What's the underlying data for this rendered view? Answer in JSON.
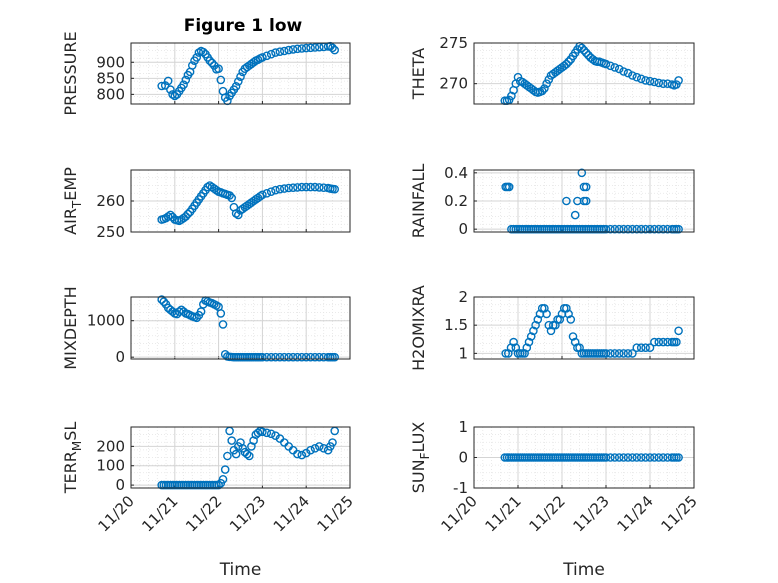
{
  "figure": {
    "title": "Figure 1 low",
    "marker_color": "#0072BD"
  },
  "chart_data": [
    {
      "type": "scatter",
      "ylabel": "PRESSURE",
      "xlabel": "",
      "xlim": [
        0,
        5
      ],
      "ylim": [
        770,
        960
      ],
      "yticks": [
        800,
        850,
        900
      ],
      "yticklabels": [
        "800",
        "850",
        "900"
      ],
      "xticks": [
        0,
        1,
        2,
        3,
        4,
        5
      ],
      "xticklabels": [],
      "x": [
        0.7,
        0.78,
        0.85,
        0.9,
        0.95,
        1.0,
        1.05,
        1.1,
        1.15,
        1.2,
        1.25,
        1.3,
        1.35,
        1.4,
        1.45,
        1.5,
        1.55,
        1.6,
        1.65,
        1.7,
        1.75,
        1.8,
        1.85,
        1.9,
        1.95,
        2.0,
        2.05,
        2.1,
        2.15,
        2.2,
        2.25,
        2.3,
        2.35,
        2.4,
        2.45,
        2.5,
        2.55,
        2.6,
        2.65,
        2.7,
        2.75,
        2.8,
        2.85,
        2.9,
        2.95,
        3.0,
        3.1,
        3.2,
        3.3,
        3.4,
        3.5,
        3.6,
        3.7,
        3.8,
        3.9,
        4.0,
        4.1,
        4.2,
        4.3,
        4.4,
        4.5,
        4.55,
        4.6,
        4.65
      ],
      "y": [
        826,
        828,
        842,
        815,
        800,
        795,
        800,
        810,
        820,
        830,
        845,
        860,
        870,
        890,
        905,
        915,
        930,
        935,
        932,
        925,
        915,
        905,
        898,
        890,
        878,
        880,
        845,
        810,
        790,
        780,
        795,
        805,
        815,
        825,
        840,
        855,
        870,
        880,
        885,
        890,
        895,
        900,
        905,
        908,
        912,
        915,
        920,
        925,
        930,
        933,
        935,
        938,
        940,
        942,
        943,
        944,
        945,
        946,
        947,
        948,
        949,
        950,
        945,
        938
      ]
    },
    {
      "type": "scatter",
      "ylabel": "THETA",
      "xlabel": "",
      "xlim": [
        0,
        5
      ],
      "ylim": [
        267.5,
        275
      ],
      "yticks": [
        270,
        275
      ],
      "yticklabels": [
        "270",
        "275"
      ],
      "xticks": [
        0,
        1,
        2,
        3,
        4,
        5
      ],
      "xticklabels": [],
      "x": [
        0.7,
        0.75,
        0.8,
        0.85,
        0.9,
        0.95,
        1.0,
        1.05,
        1.1,
        1.15,
        1.2,
        1.25,
        1.3,
        1.35,
        1.4,
        1.45,
        1.5,
        1.55,
        1.6,
        1.65,
        1.7,
        1.75,
        1.8,
        1.85,
        1.9,
        1.95,
        2.0,
        2.05,
        2.1,
        2.15,
        2.2,
        2.25,
        2.3,
        2.35,
        2.4,
        2.45,
        2.5,
        2.55,
        2.6,
        2.65,
        2.7,
        2.75,
        2.8,
        2.85,
        2.9,
        2.95,
        3.0,
        3.1,
        3.2,
        3.3,
        3.4,
        3.5,
        3.6,
        3.7,
        3.8,
        3.9,
        4.0,
        4.1,
        4.2,
        4.3,
        4.4,
        4.5,
        4.55,
        4.6,
        4.65
      ],
      "y": [
        267.9,
        267.9,
        268.0,
        268.5,
        269.2,
        270.0,
        270.8,
        270.3,
        270.2,
        270.0,
        269.8,
        269.6,
        269.4,
        269.2,
        269.0,
        268.9,
        269.0,
        269.1,
        269.4,
        270.0,
        270.5,
        271.0,
        271.2,
        271.4,
        271.6,
        271.8,
        272.0,
        272.2,
        272.4,
        272.7,
        273.0,
        273.4,
        273.8,
        274.2,
        274.6,
        274.4,
        274.1,
        273.8,
        273.5,
        273.2,
        273.0,
        272.8,
        272.7,
        272.7,
        272.6,
        272.5,
        272.4,
        272.2,
        272.0,
        271.8,
        271.5,
        271.3,
        271.0,
        270.8,
        270.6,
        270.4,
        270.3,
        270.2,
        270.1,
        270.0,
        270.0,
        269.9,
        269.8,
        269.9,
        270.4
      ]
    },
    {
      "type": "scatter",
      "ylabel": "AIR_TEMP",
      "xlabel": "",
      "xlim": [
        0,
        5
      ],
      "ylim": [
        250,
        270
      ],
      "yticks": [
        250,
        260
      ],
      "yticklabels": [
        "250",
        "260"
      ],
      "xticks": [
        0,
        1,
        2,
        3,
        4,
        5
      ],
      "xticklabels": [],
      "x": [
        0.7,
        0.75,
        0.8,
        0.85,
        0.9,
        0.95,
        1.0,
        1.05,
        1.1,
        1.15,
        1.2,
        1.25,
        1.3,
        1.35,
        1.4,
        1.45,
        1.5,
        1.55,
        1.6,
        1.65,
        1.7,
        1.75,
        1.8,
        1.85,
        1.9,
        1.95,
        2.0,
        2.05,
        2.1,
        2.15,
        2.2,
        2.25,
        2.3,
        2.35,
        2.4,
        2.45,
        2.5,
        2.55,
        2.6,
        2.65,
        2.7,
        2.75,
        2.8,
        2.85,
        2.9,
        2.95,
        3.0,
        3.1,
        3.2,
        3.3,
        3.4,
        3.5,
        3.6,
        3.7,
        3.8,
        3.9,
        4.0,
        4.1,
        4.2,
        4.3,
        4.4,
        4.5,
        4.55,
        4.6,
        4.65
      ],
      "y": [
        254.0,
        254.2,
        254.5,
        255.0,
        255.5,
        254.8,
        254.0,
        253.8,
        253.6,
        254.0,
        254.5,
        255.0,
        255.8,
        256.5,
        257.5,
        258.5,
        259.5,
        260.5,
        261.5,
        262.5,
        263.5,
        264.5,
        265.0,
        264.5,
        264.0,
        263.5,
        263.0,
        262.8,
        262.5,
        262.3,
        262.0,
        261.8,
        261.0,
        258.0,
        256.0,
        255.5,
        257.0,
        257.5,
        258.0,
        258.5,
        259.0,
        259.5,
        260.0,
        260.5,
        261.0,
        261.5,
        262.0,
        262.5,
        263.0,
        263.5,
        263.8,
        264.0,
        264.2,
        264.3,
        264.4,
        264.5,
        264.5,
        264.5,
        264.5,
        264.4,
        264.3,
        264.2,
        264.0,
        263.9,
        263.8
      ]
    },
    {
      "type": "scatter",
      "ylabel": "RAINFALL",
      "xlabel": "",
      "xlim": [
        0,
        5
      ],
      "ylim": [
        -0.02,
        0.42
      ],
      "yticks": [
        0,
        0.2,
        0.4
      ],
      "yticklabels": [
        "0",
        "0.2",
        "0.4"
      ],
      "xticks": [
        0,
        1,
        2,
        3,
        4,
        5
      ],
      "xticklabels": [],
      "x": [
        0.72,
        0.76,
        0.8,
        0.85,
        0.9,
        0.95,
        1.0,
        1.05,
        1.1,
        1.15,
        1.2,
        1.25,
        1.3,
        1.35,
        1.4,
        1.45,
        1.5,
        1.55,
        1.6,
        1.65,
        1.7,
        1.75,
        1.8,
        1.85,
        1.9,
        1.95,
        2.0,
        2.05,
        2.1,
        2.15,
        2.2,
        2.25,
        2.3,
        2.35,
        2.4,
        2.45,
        2.5,
        2.55,
        2.6,
        2.65,
        2.7,
        2.75,
        2.8,
        2.85,
        2.9,
        2.95,
        3.0,
        3.1,
        3.2,
        3.3,
        3.4,
        3.5,
        3.6,
        3.7,
        3.8,
        3.9,
        4.0,
        4.1,
        4.2,
        4.3,
        4.4,
        4.5,
        4.55,
        4.6,
        4.65,
        2.1,
        2.3,
        2.35,
        2.5,
        2.55,
        2.45,
        2.5,
        2.55
      ],
      "y": [
        0.3,
        0.3,
        0.3,
        0,
        0,
        0,
        0,
        0,
        0,
        0,
        0,
        0,
        0,
        0,
        0,
        0,
        0,
        0,
        0,
        0,
        0,
        0,
        0,
        0,
        0,
        0,
        0,
        0,
        0,
        0,
        0,
        0,
        0,
        0,
        0,
        0,
        0,
        0,
        0,
        0,
        0,
        0,
        0,
        0,
        0,
        0,
        0,
        0,
        0,
        0,
        0,
        0,
        0,
        0,
        0,
        0,
        0,
        0,
        0,
        0,
        0,
        0,
        0,
        0,
        0,
        0.2,
        0.1,
        0.2,
        0.3,
        0.3,
        0.4,
        0.2,
        0.2
      ]
    },
    {
      "type": "scatter",
      "ylabel": "MIXDEPTH",
      "xlabel": "",
      "xlim": [
        0,
        5
      ],
      "ylim": [
        -50,
        1650
      ],
      "yticks": [
        0,
        1000
      ],
      "yticklabels": [
        "0",
        "1000"
      ],
      "xticks": [
        0,
        1,
        2,
        3,
        4,
        5
      ],
      "xticklabels": [],
      "x": [
        0.7,
        0.75,
        0.8,
        0.85,
        0.9,
        0.95,
        1.0,
        1.05,
        1.1,
        1.15,
        1.2,
        1.25,
        1.3,
        1.35,
        1.4,
        1.45,
        1.5,
        1.55,
        1.6,
        1.65,
        1.7,
        1.75,
        1.8,
        1.85,
        1.9,
        1.95,
        2.0,
        2.05,
        2.1,
        2.15,
        2.2,
        2.25,
        2.3,
        2.35,
        2.4,
        2.45,
        2.5,
        2.55,
        2.6,
        2.65,
        2.7,
        2.75,
        2.8,
        2.85,
        2.9,
        2.95,
        3.0,
        3.1,
        3.2,
        3.3,
        3.4,
        3.5,
        3.6,
        3.7,
        3.8,
        3.9,
        4.0,
        4.1,
        4.2,
        4.3,
        4.4,
        4.5,
        4.55,
        4.6,
        4.65
      ],
      "y": [
        1580,
        1520,
        1450,
        1350,
        1300,
        1250,
        1200,
        1180,
        1250,
        1300,
        1250,
        1200,
        1180,
        1150,
        1120,
        1100,
        1080,
        1150,
        1250,
        1450,
        1550,
        1530,
        1500,
        1480,
        1450,
        1420,
        1380,
        1200,
        900,
        80,
        20,
        10,
        5,
        0,
        0,
        0,
        0,
        0,
        0,
        0,
        0,
        0,
        0,
        0,
        0,
        0,
        0,
        0,
        0,
        0,
        0,
        0,
        0,
        0,
        0,
        0,
        0,
        0,
        0,
        0,
        0,
        0,
        0,
        0,
        0
      ]
    },
    {
      "type": "scatter",
      "ylabel": "H2OMIXRA",
      "xlabel": "",
      "xlim": [
        0,
        5
      ],
      "ylim": [
        0.9,
        2.0
      ],
      "yticks": [
        1,
        1.5,
        2
      ],
      "yticklabels": [
        "1",
        "1.5",
        "2"
      ],
      "xticks": [
        0,
        1,
        2,
        3,
        4,
        5
      ],
      "xticklabels": [],
      "x": [
        0.72,
        0.78,
        0.84,
        0.9,
        0.95,
        1.0,
        1.05,
        1.1,
        1.15,
        1.2,
        1.25,
        1.3,
        1.35,
        1.4,
        1.45,
        1.5,
        1.55,
        1.6,
        1.65,
        1.7,
        1.75,
        1.8,
        1.85,
        1.9,
        1.95,
        2.0,
        2.05,
        2.1,
        2.15,
        2.2,
        2.25,
        2.3,
        2.35,
        2.4,
        2.45,
        2.5,
        2.55,
        2.6,
        2.65,
        2.7,
        2.75,
        2.8,
        2.85,
        2.9,
        2.95,
        3.0,
        3.1,
        3.2,
        3.3,
        3.4,
        3.5,
        3.6,
        3.7,
        3.8,
        3.9,
        4.0,
        4.1,
        4.2,
        4.3,
        4.4,
        4.5,
        4.55,
        4.6,
        4.65
      ],
      "y": [
        1.0,
        1.0,
        1.1,
        1.2,
        1.1,
        1.0,
        1.0,
        1.0,
        1.0,
        1.1,
        1.2,
        1.3,
        1.4,
        1.5,
        1.6,
        1.7,
        1.8,
        1.8,
        1.7,
        1.5,
        1.4,
        1.5,
        1.5,
        1.6,
        1.6,
        1.7,
        1.8,
        1.8,
        1.7,
        1.6,
        1.3,
        1.2,
        1.1,
        1.1,
        1.0,
        1.0,
        1.0,
        1.0,
        1.0,
        1.0,
        1.0,
        1.0,
        1.0,
        1.0,
        1.0,
        1.0,
        1.0,
        1.0,
        1.0,
        1.0,
        1.0,
        1.0,
        1.1,
        1.1,
        1.1,
        1.1,
        1.2,
        1.2,
        1.2,
        1.2,
        1.2,
        1.2,
        1.2,
        1.4
      ]
    },
    {
      "type": "scatter",
      "ylabel": "TERR_MSL",
      "xlabel": "Time",
      "xlim": [
        0,
        5
      ],
      "ylim": [
        -15,
        300
      ],
      "yticks": [
        0,
        100,
        200
      ],
      "yticklabels": [
        "0",
        "100",
        "200"
      ],
      "xticks": [
        0,
        1,
        2,
        3,
        4,
        5
      ],
      "xticklabels": [
        "11/20",
        "11/21",
        "11/22",
        "11/23",
        "11/24",
        "11/25"
      ],
      "x": [
        0.7,
        0.75,
        0.8,
        0.85,
        0.9,
        0.95,
        1.0,
        1.05,
        1.1,
        1.15,
        1.2,
        1.25,
        1.3,
        1.35,
        1.4,
        1.45,
        1.5,
        1.55,
        1.6,
        1.65,
        1.7,
        1.75,
        1.8,
        1.85,
        1.9,
        1.95,
        2.0,
        2.05,
        2.1,
        2.15,
        2.2,
        2.25,
        2.3,
        2.35,
        2.4,
        2.45,
        2.5,
        2.55,
        2.6,
        2.65,
        2.7,
        2.75,
        2.8,
        2.85,
        2.9,
        2.95,
        3.0,
        3.1,
        3.2,
        3.3,
        3.4,
        3.5,
        3.6,
        3.7,
        3.8,
        3.9,
        4.0,
        4.1,
        4.2,
        4.3,
        4.4,
        4.5,
        4.55,
        4.6,
        4.65
      ],
      "y": [
        0,
        0,
        0,
        0,
        0,
        0,
        0,
        0,
        0,
        0,
        0,
        0,
        0,
        0,
        0,
        0,
        0,
        0,
        0,
        0,
        0,
        0,
        0,
        0,
        0,
        0,
        0,
        10,
        30,
        80,
        150,
        280,
        230,
        180,
        160,
        200,
        220,
        190,
        170,
        160,
        150,
        200,
        230,
        260,
        270,
        280,
        275,
        270,
        265,
        255,
        240,
        220,
        200,
        180,
        160,
        155,
        165,
        180,
        190,
        200,
        190,
        180,
        200,
        220,
        280
      ]
    },
    {
      "type": "scatter",
      "ylabel": "SUN_FLUX",
      "xlabel": "Time",
      "xlim": [
        0,
        5
      ],
      "ylim": [
        -1,
        1
      ],
      "yticks": [
        -1,
        0,
        1
      ],
      "yticklabels": [
        "-1",
        "0",
        "1"
      ],
      "xticks": [
        0,
        1,
        2,
        3,
        4,
        5
      ],
      "xticklabels": [
        "11/20",
        "11/21",
        "11/22",
        "11/23",
        "11/24",
        "11/25"
      ],
      "x": [
        0.7,
        0.75,
        0.8,
        0.85,
        0.9,
        0.95,
        1.0,
        1.05,
        1.1,
        1.15,
        1.2,
        1.25,
        1.3,
        1.35,
        1.4,
        1.45,
        1.5,
        1.55,
        1.6,
        1.65,
        1.7,
        1.75,
        1.8,
        1.85,
        1.9,
        1.95,
        2.0,
        2.05,
        2.1,
        2.15,
        2.2,
        2.25,
        2.3,
        2.35,
        2.4,
        2.45,
        2.5,
        2.55,
        2.6,
        2.65,
        2.7,
        2.75,
        2.8,
        2.85,
        2.9,
        2.95,
        3.0,
        3.1,
        3.2,
        3.3,
        3.4,
        3.5,
        3.6,
        3.7,
        3.8,
        3.9,
        4.0,
        4.1,
        4.2,
        4.3,
        4.4,
        4.5,
        4.55,
        4.6,
        4.65
      ],
      "y": [
        0,
        0,
        0,
        0,
        0,
        0,
        0,
        0,
        0,
        0,
        0,
        0,
        0,
        0,
        0,
        0,
        0,
        0,
        0,
        0,
        0,
        0,
        0,
        0,
        0,
        0,
        0,
        0,
        0,
        0,
        0,
        0,
        0,
        0,
        0,
        0,
        0,
        0,
        0,
        0,
        0,
        0,
        0,
        0,
        0,
        0,
        0,
        0,
        0,
        0,
        0,
        0,
        0,
        0,
        0,
        0,
        0,
        0,
        0,
        0,
        0,
        0,
        0,
        0,
        0
      ]
    }
  ]
}
